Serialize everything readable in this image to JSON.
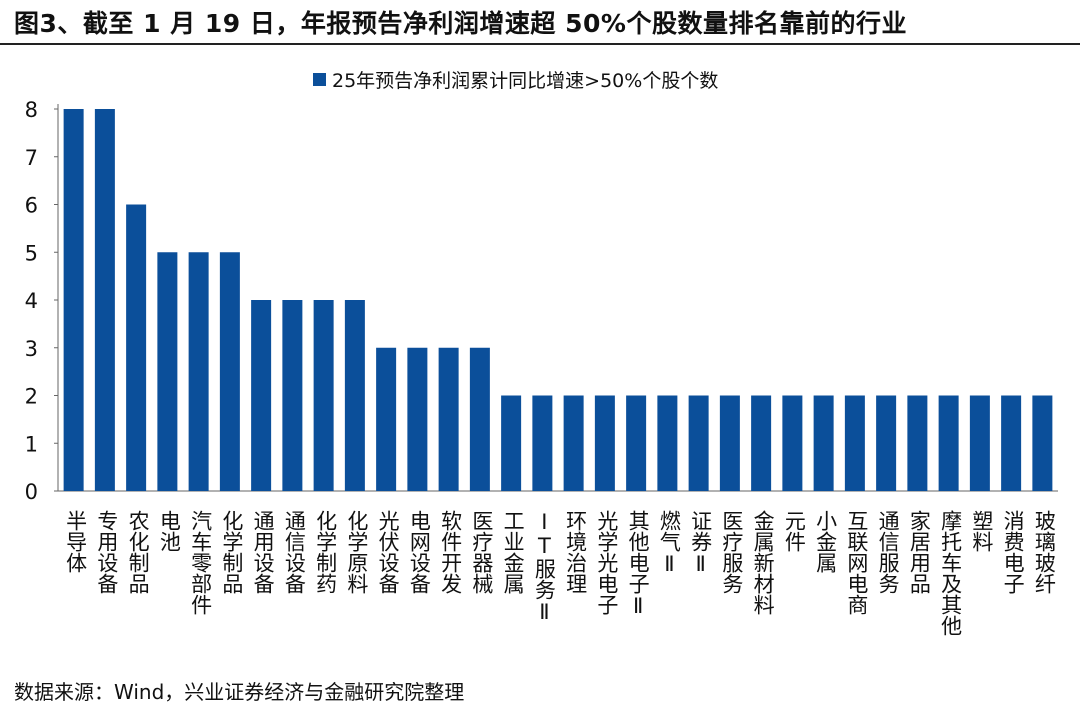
{
  "title": "图3、截至 1 月 19 日，年报预告净利润增速超  50%个股数量排名靠前的行业",
  "source": "数据来源：Wind，兴业证券经济与金融研究院整理",
  "chart_data": {
    "type": "bar",
    "categories": [
      "半导体",
      "专用设备",
      "农化制品",
      "电池",
      "汽车零部件",
      "化学制品",
      "通用设备",
      "通信设备",
      "化学制药",
      "化学原料",
      "光伏设备",
      "电网设备",
      "软件开发",
      "医疗器械",
      "工业金属",
      "IT服务Ⅱ",
      "环境治理",
      "光学光电子",
      "其他电子Ⅱ",
      "燃气Ⅱ",
      "证券Ⅱ",
      "医疗服务",
      "金属新材料",
      "元件",
      "小金属",
      "互联网电商",
      "通信服务",
      "家居用品",
      "摩托车及其他",
      "塑料",
      "消费电子",
      "玻璃玻纤"
    ],
    "series": [
      {
        "name": "25年预告净利润累计同比增速>50%个股个数",
        "values": [
          8,
          8,
          6,
          5,
          5,
          5,
          4,
          4,
          4,
          4,
          3,
          3,
          3,
          3,
          2,
          2,
          2,
          2,
          2,
          2,
          2,
          2,
          2,
          2,
          2,
          2,
          2,
          2,
          2,
          2,
          2,
          2
        ]
      }
    ],
    "ylim": [
      0,
      8
    ],
    "yticks": [
      "0",
      "1",
      "2",
      "3",
      "4",
      "5",
      "6",
      "7",
      "8"
    ],
    "grid": false,
    "legend": "top-center",
    "color": "#0b4f9a"
  }
}
